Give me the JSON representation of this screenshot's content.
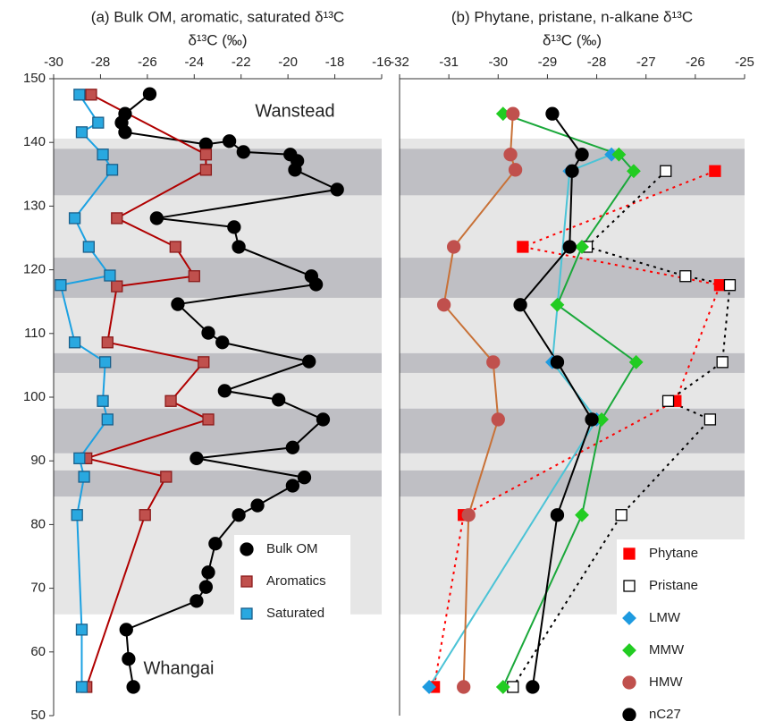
{
  "chart_data": [
    {
      "type": "line",
      "title": "(a) Bulk OM, aromatic, saturated δ¹³C",
      "x_label": "δ¹³C (‰)",
      "xlim": [
        -30,
        -16
      ],
      "xticks": [
        -30,
        -28,
        -26,
        -24,
        -22,
        -20,
        -18,
        -16
      ],
      "ylim": [
        50,
        150
      ],
      "yticks": [
        50,
        60,
        70,
        80,
        90,
        100,
        110,
        120,
        130,
        140,
        150
      ],
      "bands_light": [
        [
          65.9,
          140.6
        ]
      ],
      "bands_dark": [
        [
          131.7,
          139.0
        ],
        [
          115.6,
          121.9
        ],
        [
          103.8,
          106.9
        ],
        [
          91.2,
          98.2
        ],
        [
          84.4,
          88.5
        ]
      ],
      "annotations": [
        "Wanstead",
        "Whangai"
      ],
      "legend": "lower right",
      "series": [
        {
          "name": "Bulk OM",
          "marker": "circle",
          "color": "#000000",
          "edgecolor": "#000000",
          "line_color": "#000000",
          "x": [
            -25.9,
            -26.95,
            -27.1,
            -26.95,
            -23.5,
            -22.5,
            -21.9,
            -19.9,
            -19.6,
            -19.7,
            -17.9,
            -25.6,
            -22.3,
            -22.1,
            -19.0,
            -18.8,
            -24.7,
            -23.4,
            -22.8,
            -19.1,
            -22.7,
            -20.4,
            -18.5,
            -19.8,
            -23.9,
            -19.3,
            -19.8,
            -21.3,
            -22.1,
            -23.1,
            -23.4,
            -23.5,
            -23.9,
            -26.9,
            -26.8,
            -26.6
          ],
          "y": [
            147.6,
            144.5,
            143.1,
            141.6,
            139.7,
            140.2,
            138.5,
            138.1,
            137.1,
            135.7,
            132.6,
            128.1,
            126.7,
            123.6,
            119.0,
            117.7,
            114.6,
            110.1,
            108.6,
            105.6,
            101.0,
            99.6,
            96.5,
            92.1,
            90.4,
            87.4,
            86.1,
            83.0,
            81.5,
            77.0,
            72.5,
            70.2,
            68.0,
            63.5,
            58.9,
            54.5
          ]
        },
        {
          "name": "Aromatics",
          "marker": "square",
          "color": "#c0504d",
          "edgecolor": "#8b1a1a",
          "line_color": "#b00000",
          "x": [
            -28.4,
            -23.5,
            -23.5,
            -27.3,
            -24.8,
            -24.0,
            -27.3,
            -27.7,
            -23.6,
            -25.0,
            -23.4,
            -28.6,
            -25.2,
            -26.1,
            -28.6
          ],
          "y": [
            147.5,
            138.1,
            135.7,
            128.1,
            123.6,
            119.0,
            117.4,
            108.6,
            105.5,
            99.4,
            96.5,
            90.4,
            87.5,
            81.5,
            54.5
          ]
        },
        {
          "name": "Saturated",
          "marker": "square",
          "color": "#29a8e0",
          "edgecolor": "#1a5f8a",
          "line_color": "#1ba1e2",
          "x": [
            -28.9,
            -28.1,
            -28.8,
            -27.9,
            -27.5,
            -29.1,
            -28.5,
            -27.6,
            -29.7,
            -29.1,
            -27.8,
            -27.9,
            -27.7,
            -28.9,
            -28.7,
            -29.0,
            -28.8,
            -28.8
          ],
          "y": [
            147.5,
            143.1,
            141.6,
            138.1,
            135.7,
            128.1,
            123.6,
            119.1,
            117.6,
            108.6,
            105.5,
            99.4,
            96.5,
            90.4,
            87.5,
            81.5,
            63.5,
            54.5
          ]
        }
      ]
    },
    {
      "type": "line",
      "title": "(b) Phytane, pristane, n-alkane δ¹³C",
      "x_label": "δ¹³C (‰)",
      "xlim": [
        -32,
        -25
      ],
      "xticks": [
        -32,
        -31,
        -30,
        -29,
        -28,
        -27,
        -26,
        -25
      ],
      "ylim": [
        50,
        150
      ],
      "bands_light": [
        [
          65.9,
          140.6
        ]
      ],
      "bands_dark": [
        [
          131.7,
          139.0
        ],
        [
          115.6,
          121.9
        ],
        [
          103.8,
          106.9
        ],
        [
          91.2,
          98.2
        ],
        [
          84.4,
          88.5
        ]
      ],
      "legend": "lower right",
      "series": [
        {
          "name": "Phytane",
          "marker": "square",
          "color": "#ff0000",
          "edgecolor": "#ff0000",
          "line_color": "#ff0000",
          "dotted": true,
          "x": [
            -25.6,
            -29.5,
            -25.5,
            -26.4,
            -30.7,
            -31.3
          ],
          "y": [
            135.5,
            123.6,
            117.6,
            99.4,
            81.5,
            54.5
          ]
        },
        {
          "name": "Pristane",
          "marker": "square",
          "color": "#ffffff",
          "edgecolor": "#000000",
          "line_color": "#000000",
          "dotted": true,
          "x": [
            -26.6,
            -28.2,
            -26.2,
            -25.3,
            -25.45,
            -26.55,
            -25.7,
            -27.5,
            -29.7
          ],
          "y": [
            135.5,
            123.6,
            119.0,
            117.6,
            105.5,
            99.4,
            96.5,
            81.5,
            54.5
          ]
        },
        {
          "name": "LMW",
          "marker": "diamond",
          "color": "#1e9be0",
          "edgecolor": "#1e9be0",
          "line_color": "#4bc3d6",
          "x": [
            -27.7,
            -28.55,
            -28.9,
            -28.0,
            -31.4
          ],
          "y": [
            138.1,
            135.5,
            105.5,
            96.5,
            54.5
          ]
        },
        {
          "name": "MMW",
          "marker": "diamond",
          "color": "#22cc22",
          "edgecolor": "#22cc22",
          "line_color": "#1aa83a",
          "x": [
            -29.9,
            -27.55,
            -27.25,
            -28.3,
            -28.8,
            -27.2,
            -27.9,
            -28.3,
            -29.9
          ],
          "y": [
            144.5,
            138.1,
            135.5,
            123.6,
            114.5,
            105.5,
            96.5,
            81.5,
            54.5
          ]
        },
        {
          "name": "HMW",
          "marker": "circle",
          "color": "#c0504d",
          "edgecolor": "#c0504d",
          "line_color": "#c87137",
          "x": [
            -29.7,
            -29.75,
            -29.65,
            -30.9,
            -31.1,
            -30.1,
            -30.0,
            -30.6,
            -30.7
          ],
          "y": [
            144.5,
            138.1,
            135.7,
            123.6,
            114.5,
            105.5,
            96.5,
            81.5,
            54.5
          ]
        },
        {
          "name": "nC27",
          "marker": "circle",
          "color": "#000000",
          "edgecolor": "#000000",
          "line_color": "#000000",
          "x": [
            -28.9,
            -28.3,
            -28.5,
            -28.55,
            -29.55,
            -28.8,
            -28.1,
            -28.8,
            -29.3
          ],
          "y": [
            144.5,
            138.1,
            135.5,
            123.6,
            114.5,
            105.5,
            96.5,
            81.5,
            54.5
          ]
        }
      ]
    }
  ]
}
